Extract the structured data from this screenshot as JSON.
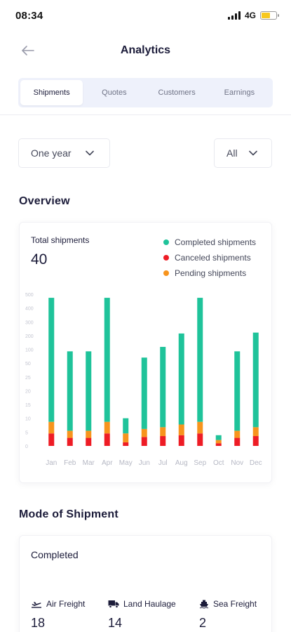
{
  "status": {
    "time": "08:34",
    "network": "4G"
  },
  "header": {
    "title": "Analytics"
  },
  "tabs": [
    {
      "label": "Shipments",
      "active": true
    },
    {
      "label": "Quotes",
      "active": false
    },
    {
      "label": "Customers",
      "active": false
    },
    {
      "label": "Earnings",
      "active": false
    }
  ],
  "filters": {
    "period": "One year",
    "scope": "All"
  },
  "overview": {
    "title": "Overview",
    "total_label": "Total shipments",
    "total_value": "40",
    "legend": [
      {
        "label": "Completed shipments",
        "color": "#1fc39a"
      },
      {
        "label": "Canceled shipments",
        "color": "#ee1c25"
      },
      {
        "label": "Pending shipments",
        "color": "#f7941d"
      }
    ]
  },
  "chart_data": {
    "type": "bar",
    "stacked": true,
    "categories": [
      "Jan",
      "Feb",
      "Mar",
      "Apr",
      "May",
      "Jun",
      "Jul",
      "Aug",
      "Sep",
      "Oct",
      "Nov",
      "Dec"
    ],
    "y_ticks": [
      "0",
      "5",
      "10",
      "15",
      "20",
      "25",
      "50",
      "100",
      "200",
      "300",
      "400",
      "500"
    ],
    "series": [
      {
        "name": "Canceled shipments",
        "color": "#ee1c25",
        "values": [
          7,
          4.5,
          4.5,
          7,
          2,
          5,
          5.5,
          6,
          7,
          1.5,
          4.5,
          5.5
        ]
      },
      {
        "name": "Pending shipments",
        "color": "#f7941d",
        "values": [
          6.5,
          4,
          4,
          6.5,
          5,
          4.5,
          5,
          6,
          6.5,
          1.8,
          4,
          5
        ]
      },
      {
        "name": "Completed shipments",
        "color": "#1fc39a",
        "values": [
          69.5,
          44.5,
          44.5,
          69.5,
          8.5,
          40,
          45,
          51,
          69.5,
          2.7,
          44.5,
          53
        ]
      }
    ]
  },
  "mode": {
    "title": "Mode of Shipment",
    "subtitle": "Completed",
    "items": [
      {
        "label": "Air Freight",
        "value": "18",
        "icon": "plane-icon"
      },
      {
        "label": "Land Haulage",
        "value": "14",
        "icon": "truck-icon"
      },
      {
        "label": "Sea Freight",
        "value": "2",
        "icon": "ship-icon"
      }
    ]
  }
}
